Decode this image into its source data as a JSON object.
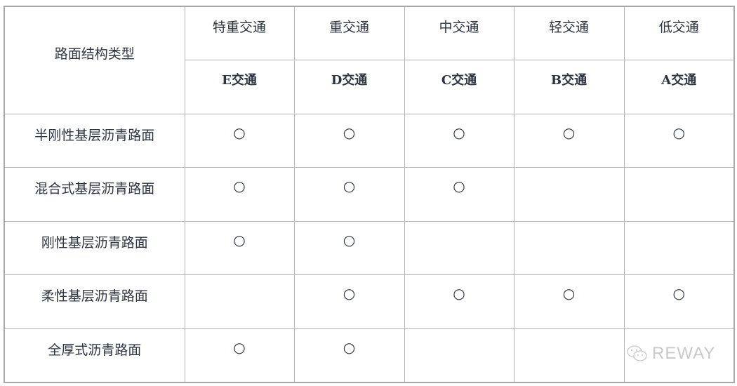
{
  "table": {
    "corner_header": "路面结构类型",
    "traffic_levels": [
      "特重交通",
      "重交通",
      "中交通",
      "轻交通",
      "低交通"
    ],
    "traffic_codes": [
      "E交通",
      "D交通",
      "C交通",
      "B交通",
      "A交通"
    ],
    "mark_symbol": "○",
    "rows": [
      {
        "label": "半刚性基层沥青路面",
        "marks": [
          "○",
          "○",
          "○",
          "○",
          "○"
        ]
      },
      {
        "label": "混合式基层沥青路面",
        "marks": [
          "○",
          "○",
          "○",
          "",
          ""
        ]
      },
      {
        "label": "刚性基层沥青路面",
        "marks": [
          "○",
          "○",
          "",
          "",
          ""
        ]
      },
      {
        "label": "柔性基层沥青路面",
        "marks": [
          "",
          "○",
          "○",
          "○",
          "○"
        ]
      },
      {
        "label": "全厚式沥青路面",
        "marks": [
          "○",
          "○",
          "",
          "",
          ""
        ]
      }
    ]
  },
  "watermark": {
    "text": "REWAY",
    "icon": "wechat-icon"
  }
}
